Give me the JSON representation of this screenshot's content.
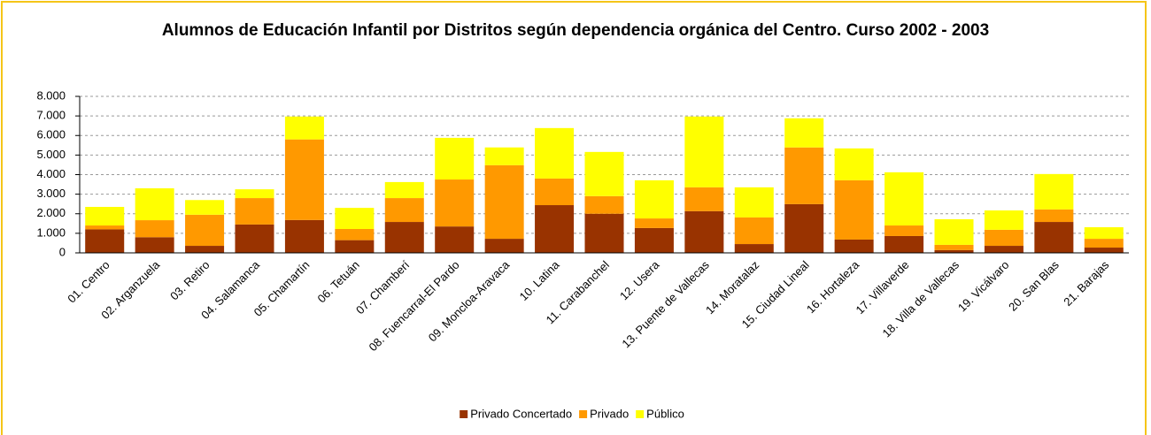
{
  "chart_data": {
    "type": "stacked_bar",
    "title": "Alumnos de Educación Infantil  por Distritos según dependencia orgánica del Centro. Curso 2002 - 2003",
    "categories": [
      "01. Centro",
      "02. Arganzuela",
      "03. Retiro",
      "04. Salamanca",
      "05. Chamartín",
      "06. Tetuán",
      "07. Chamberí",
      "08. Fuencarral-El Pardo",
      "09. Moncloa-Aravaca",
      "10. Latina",
      "11. Carabanchel",
      "12. Usera",
      "13. Puente de Vallecas",
      "14. Moratalaz",
      "15. Ciudad Lineal",
      "16. Hortaleza",
      "17. Villaverde",
      "18. Villa de Vallecas",
      "19. Vicálvaro",
      "20. San Blas",
      "21. Barajas"
    ],
    "series": [
      {
        "name": "Privado Concertado",
        "color": "#993300",
        "values": [
          1200,
          800,
          360,
          1450,
          1680,
          650,
          1580,
          1350,
          720,
          2440,
          2000,
          1270,
          2130,
          450,
          2490,
          680,
          860,
          140,
          360,
          1580,
          270
        ]
      },
      {
        "name": "Privado",
        "color": "#ff9900",
        "values": [
          200,
          870,
          1590,
          1350,
          4120,
          570,
          1220,
          2400,
          3760,
          1360,
          900,
          490,
          1220,
          1360,
          2900,
          3030,
          540,
          270,
          820,
          640,
          450
        ]
      },
      {
        "name": "Público",
        "color": "#ffff00",
        "values": [
          950,
          1630,
          750,
          450,
          1170,
          1080,
          820,
          2130,
          910,
          2580,
          2260,
          1950,
          3620,
          1540,
          1490,
          1630,
          2720,
          1310,
          990,
          1810,
          590
        ]
      }
    ],
    "ylim": [
      0,
      8000
    ],
    "yticks": [
      0,
      {
        "value": 1000,
        "label": "1.000"
      },
      {
        "value": 2000,
        "label": "2.000"
      },
      {
        "value": 3000,
        "label": "3.000"
      },
      {
        "value": 4000,
        "label": "4.000"
      },
      {
        "value": 5000,
        "label": "5.000"
      },
      {
        "value": 6000,
        "label": "6.000"
      },
      {
        "value": 7000,
        "label": "7.000"
      },
      {
        "value": 8000,
        "label": "8.000"
      }
    ],
    "grid": true,
    "legend": "bottom"
  }
}
